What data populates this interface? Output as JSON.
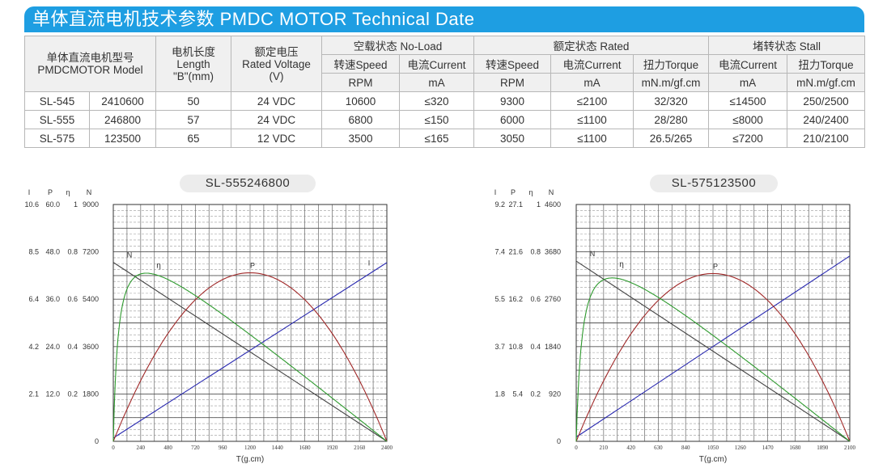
{
  "title": "单体直流电机技术参数  PMDC MOTOR Technical Date",
  "table": {
    "model_header": [
      "单体直流电机型号",
      "PMDCMOTOR Model"
    ],
    "length_header": [
      "电机长度",
      "Length",
      "\"B\"(mm)"
    ],
    "voltage_header": [
      "额定电压",
      "Rated Voltage",
      "(V)"
    ],
    "noload_header": "空载状态 No-Load",
    "rated_header": "额定状态 Rated",
    "stall_header": "堵转状态 Stall",
    "sub_headers": [
      "转速Speed",
      "电流Current",
      "转速Speed",
      "电流Current",
      "扭力Torque",
      "电流Current",
      "扭力Torque"
    ],
    "units": [
      "RPM",
      "mA",
      "RPM",
      "mA",
      "mN.m/gf.cm",
      "mA",
      "mN.m/gf.cm"
    ],
    "rows": [
      [
        "SL-545",
        "2410600",
        "50",
        "24 VDC",
        "10600",
        "≤320",
        "9300",
        "≤2100",
        "32/320",
        "≤14500",
        "250/2500"
      ],
      [
        "SL-555",
        "246800",
        "57",
        "24 VDC",
        "6800",
        "≤150",
        "6000",
        "≤1100",
        "28/280",
        "≤8000",
        "240/2400"
      ],
      [
        "SL-575",
        "123500",
        "65",
        "12 VDC",
        "3500",
        "≤165",
        "3050",
        "≤1100",
        "26.5/265",
        "≤7200",
        "210/2100"
      ]
    ]
  },
  "chart_data": [
    {
      "type": "line",
      "title": "SL-555246800",
      "xlabel": "T(g.cm)",
      "xlim": [
        0,
        2400
      ],
      "x_ticks": [
        "0",
        "240",
        "480",
        "720",
        "960",
        "1200",
        "1440",
        "1680",
        "1920",
        "2160",
        "2400"
      ],
      "axis_headers": [
        "I",
        "P",
        "η",
        "N"
      ],
      "y_tick_rows": [
        [
          "10.6",
          "60.0",
          "1",
          "9000"
        ],
        [
          "8.5",
          "48.0",
          "0.8",
          "7200"
        ],
        [
          "6.4",
          "36.0",
          "0.6",
          "5400"
        ],
        [
          "4.2",
          "24.0",
          "0.4",
          "3600"
        ],
        [
          "2.1",
          "12.0",
          "0.2",
          "1800"
        ],
        [
          "",
          "",
          "",
          "0"
        ]
      ],
      "stall_torque": 2400,
      "no_load_speed": 6800,
      "stall_current": 8.0,
      "no_load_current": 0.15,
      "max_power": 42.7,
      "max_efficiency": 0.71,
      "grid": true,
      "series": [
        {
          "name": "N",
          "color": "#444444"
        },
        {
          "name": "η",
          "color": "#2e9a2e"
        },
        {
          "name": "P",
          "color": "#a02828"
        },
        {
          "name": "I",
          "color": "#2828b0"
        }
      ]
    },
    {
      "type": "line",
      "title": "SL-575123500",
      "xlabel": "T(g.cm)",
      "xlim": [
        0,
        2100
      ],
      "x_ticks": [
        "0",
        "210",
        "420",
        "630",
        "840",
        "1050",
        "1260",
        "1470",
        "1680",
        "1890",
        "2100"
      ],
      "axis_headers": [
        "I",
        "P",
        "η",
        "N"
      ],
      "y_tick_rows": [
        [
          "9.2",
          "27.1",
          "1",
          "4600"
        ],
        [
          "7.4",
          "21.6",
          "0.8",
          "3680"
        ],
        [
          "5.5",
          "16.2",
          "0.6",
          "2760"
        ],
        [
          "3.7",
          "10.8",
          "0.4",
          "1840"
        ],
        [
          "1.8",
          "5.4",
          "0.2",
          "920"
        ],
        [
          "",
          "",
          "",
          "0"
        ]
      ],
      "stall_torque": 2100,
      "no_load_speed": 3500,
      "stall_current": 7.2,
      "no_load_current": 0.165,
      "max_power": 19.2,
      "max_efficiency": 0.69,
      "grid": true,
      "series": [
        {
          "name": "N",
          "color": "#444444"
        },
        {
          "name": "η",
          "color": "#2e9a2e"
        },
        {
          "name": "P",
          "color": "#a02828"
        },
        {
          "name": "I",
          "color": "#2828b0"
        }
      ]
    }
  ]
}
